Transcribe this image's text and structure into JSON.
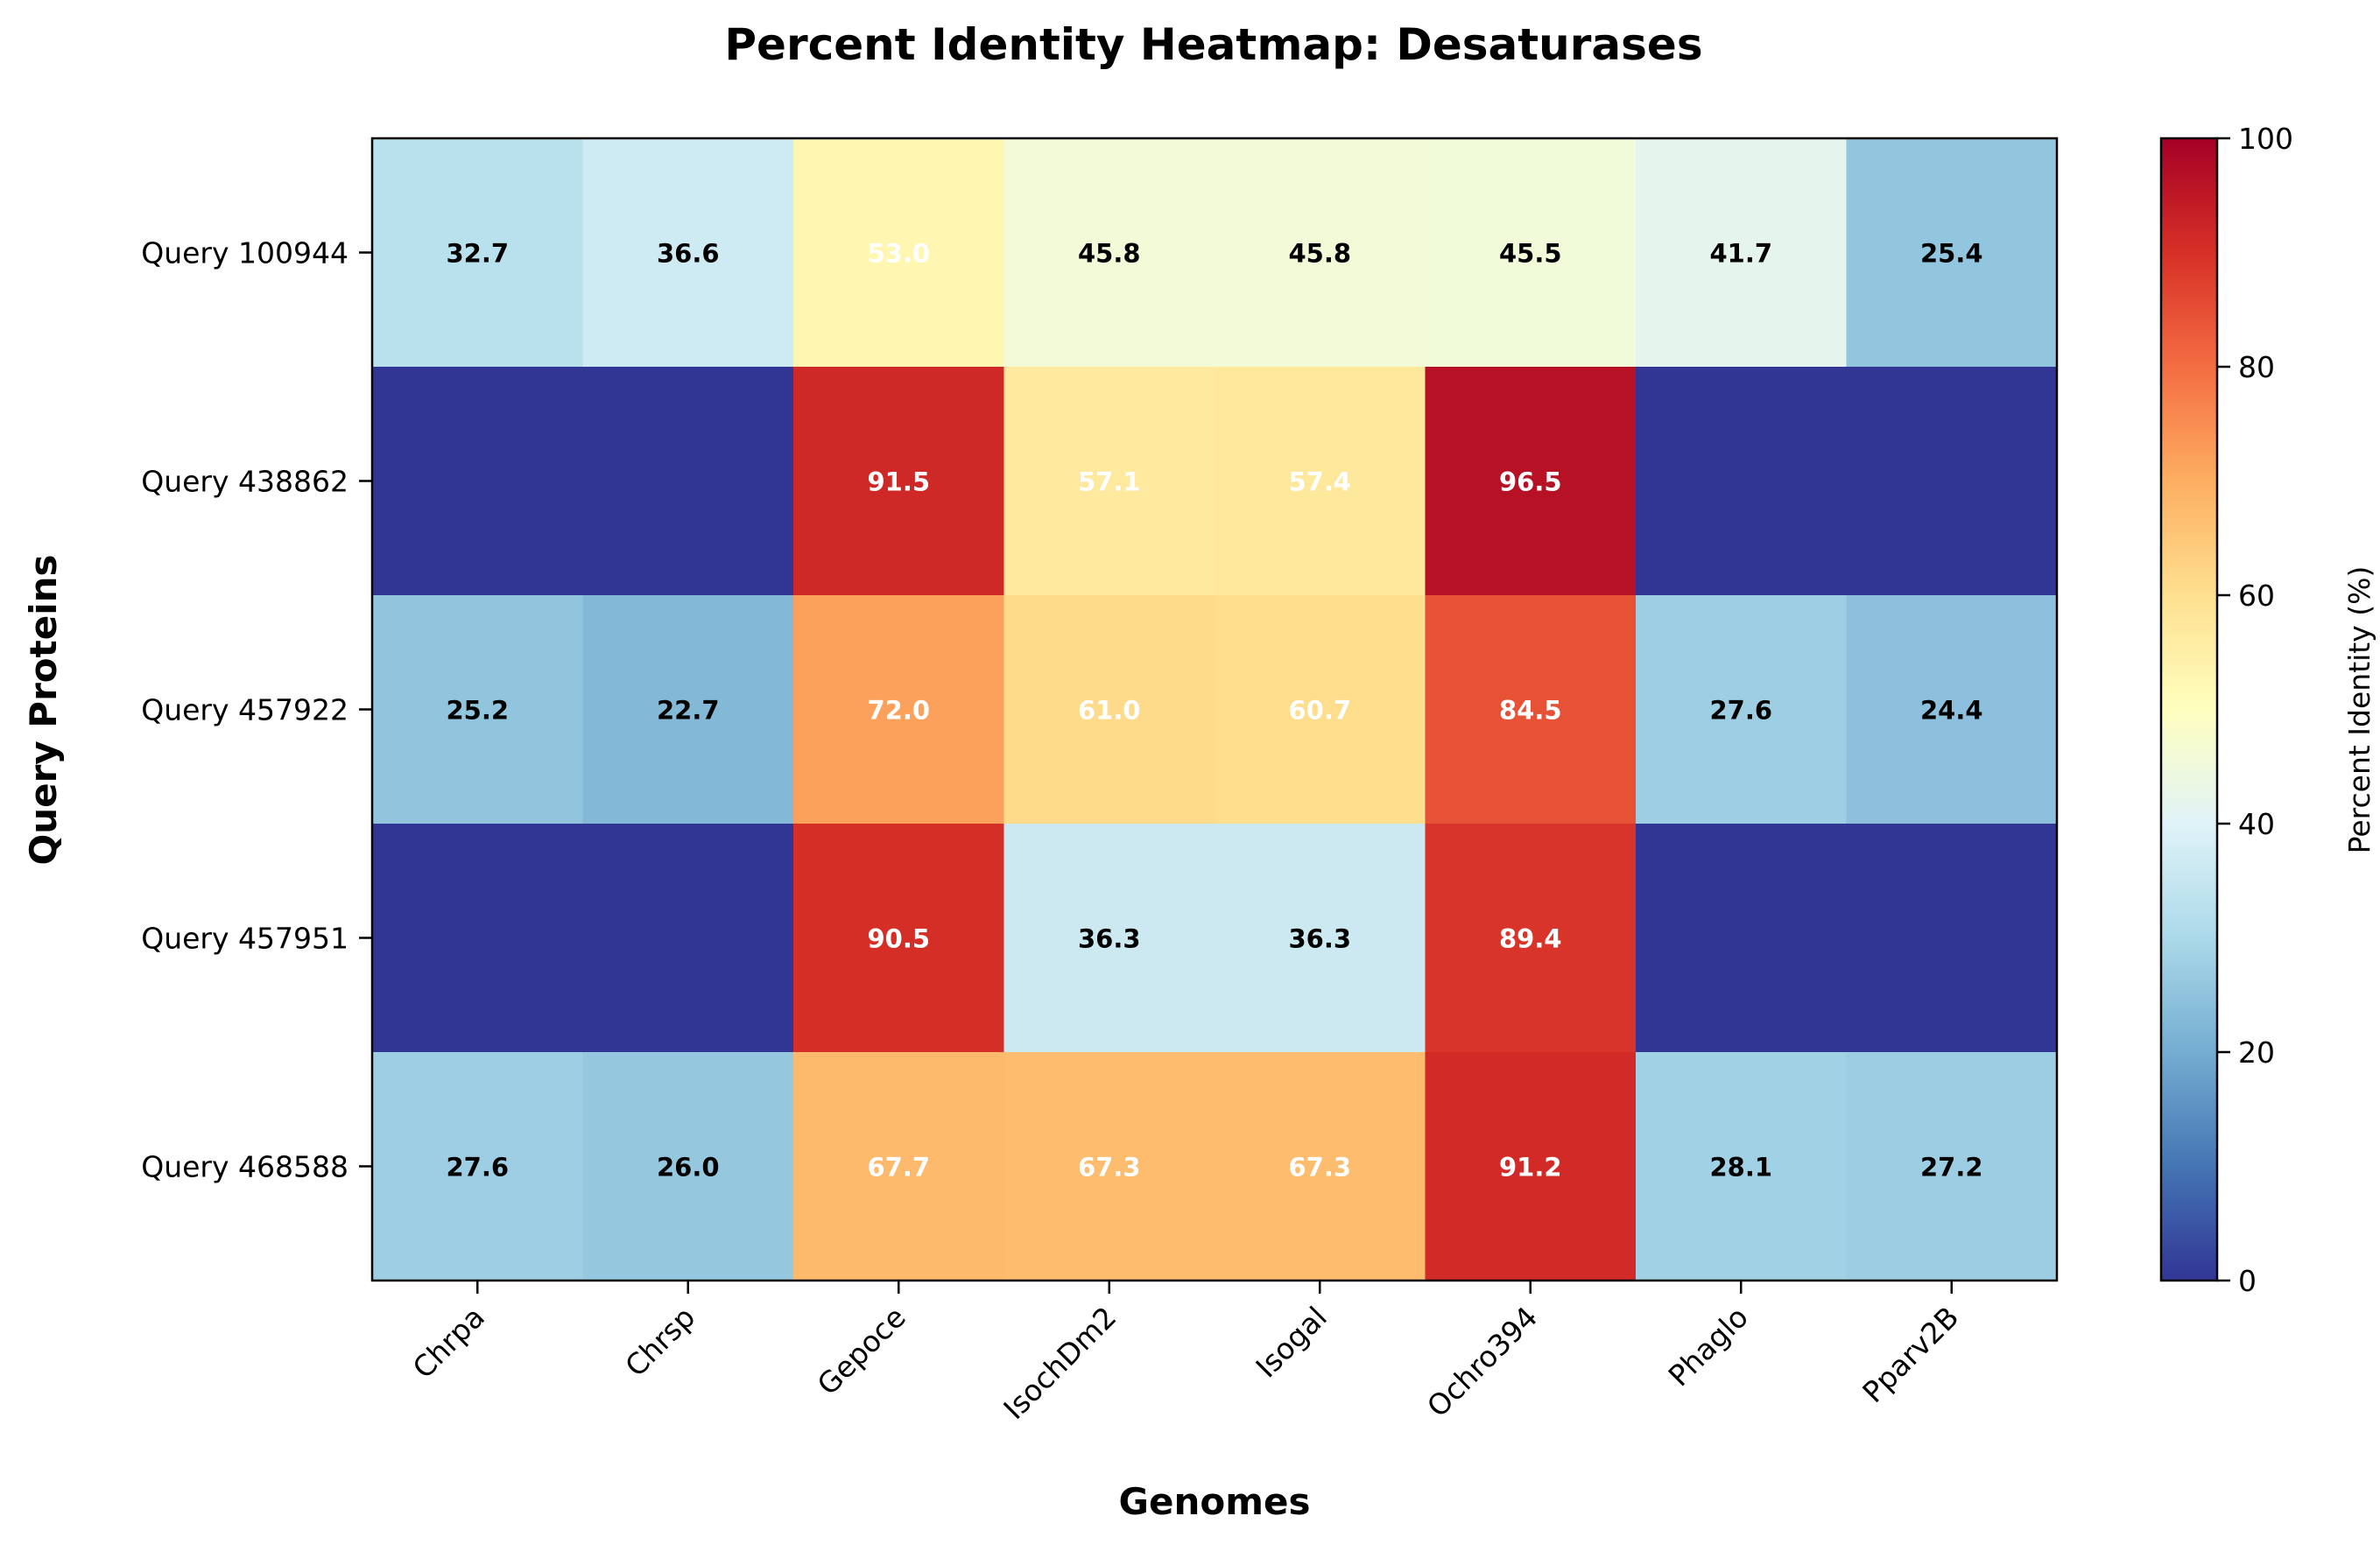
{
  "chart_data": {
    "type": "heatmap",
    "title": "Percent Identity Heatmap: Desaturases",
    "xlabel": "Genomes",
    "ylabel": "Query Proteins",
    "colorbar_label": "Percent Identity (%)",
    "colormap": "RdYlBu_r",
    "vmin": 0,
    "vmax": 100,
    "colorbar_ticks": [
      "0",
      "20",
      "40",
      "60",
      "80",
      "100"
    ],
    "x_categories": [
      "Chrpa",
      "Chrsp",
      "Gepoce",
      "IsochDm2",
      "Isogal",
      "Ochro394",
      "Phaglo",
      "Pparv2B"
    ],
    "y_categories": [
      "Query 100944",
      "Query 438862",
      "Query 457922",
      "Query 457951",
      "Query 468588"
    ],
    "values": [
      [
        32.7,
        36.6,
        53.0,
        45.8,
        45.8,
        45.5,
        41.7,
        25.4
      ],
      [
        0,
        0,
        91.5,
        57.1,
        57.4,
        96.5,
        0,
        0
      ],
      [
        25.2,
        22.7,
        72.0,
        61.0,
        60.7,
        84.5,
        27.6,
        24.4
      ],
      [
        0,
        0,
        90.5,
        36.3,
        36.3,
        89.4,
        0,
        0
      ],
      [
        27.6,
        26.0,
        67.7,
        67.3,
        67.3,
        91.2,
        28.1,
        27.2
      ]
    ],
    "cell_labels": [
      [
        "32.7",
        "36.6",
        "53.0",
        "45.8",
        "45.8",
        "45.5",
        "41.7",
        "25.4"
      ],
      [
        "",
        "",
        "91.5",
        "57.1",
        "57.4",
        "96.5",
        "",
        ""
      ],
      [
        "25.2",
        "22.7",
        "72.0",
        "61.0",
        "60.7",
        "84.5",
        "27.6",
        "24.4"
      ],
      [
        "",
        "",
        "90.5",
        "36.3",
        "36.3",
        "89.4",
        "",
        ""
      ],
      [
        "27.6",
        "26.0",
        "67.7",
        "67.3",
        "67.3",
        "91.2",
        "28.1",
        "27.2"
      ]
    ],
    "label_threshold": 50,
    "label_color_above": "#ffffff",
    "label_color_below": "#000000"
  }
}
